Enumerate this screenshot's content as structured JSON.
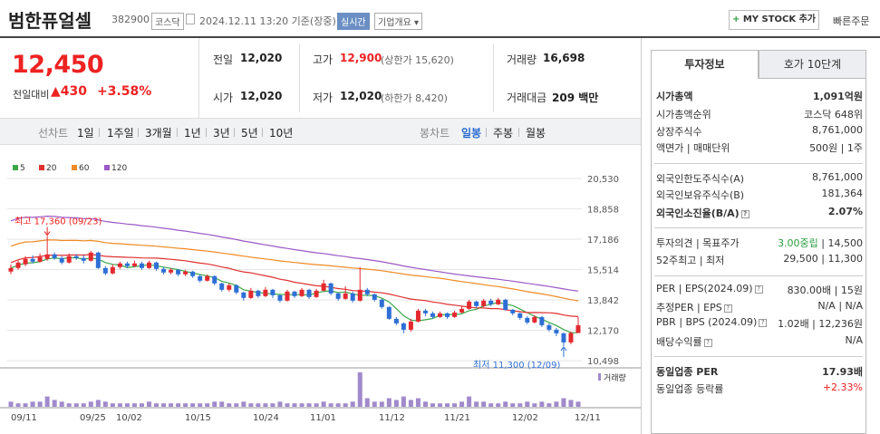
{
  "header": {
    "stock_name": "범한퓨얼셀",
    "stock_code": "382900",
    "market": "코스닥",
    "datetime": "2024.12.11 13:20 기준(장중)",
    "realtime": "실시간",
    "company_info": "기업개요",
    "mystock_label": "MY STOCK 추가",
    "mystock_plus": "+",
    "quick_order": "빠른주문"
  },
  "price": {
    "current": "12,450",
    "change_label": "전일대비",
    "change_value": "▲430",
    "change_pct": "+3.58%"
  },
  "quote": {
    "prev_close_label": "전일",
    "prev_close": "12,020",
    "high_label": "고가",
    "high": "12,900",
    "upper_limit": "(상한가 15,620)",
    "volume_label": "거래량",
    "volume": "16,698",
    "open_label": "시가",
    "open": "12,020",
    "low_label": "저가",
    "low": "12,020",
    "lower_limit": "(하한가 8,420)",
    "amount_label": "거래대금",
    "amount": "209 백만"
  },
  "period_bar": {
    "line_chart_label": "선차트",
    "line_periods": [
      "1일",
      "1주일",
      "3개월",
      "1년",
      "3년",
      "5년",
      "10년"
    ],
    "candle_chart_label": "봉차트",
    "candle_periods": [
      "일봉",
      "주봉",
      "월봉"
    ],
    "active": "일봉"
  },
  "chart_data": {
    "type": "candlestick",
    "legend": [
      {
        "name": "5",
        "color": "#3aa84a"
      },
      {
        "name": "20",
        "color": "#e03030"
      },
      {
        "name": "60",
        "color": "#f08a24"
      },
      {
        "name": "120",
        "color": "#9b59c6"
      }
    ],
    "y_ticks": [
      "20,530",
      "18,858",
      "17,186",
      "15,514",
      "13,842",
      "12,170",
      "10,498"
    ],
    "ylim": [
      10498,
      20530
    ],
    "x_ticks": [
      "09/11",
      "09/25",
      "10/02",
      "10/15",
      "10/24",
      "11/01",
      "11/12",
      "11/21",
      "12/02",
      "12/11"
    ],
    "high_annotation": "최고 17,360 (09/23)",
    "low_annotation": "최저 11,300 (12/09)",
    "volume_label": "거래량",
    "candles": [
      {
        "o": 15400,
        "c": 15600,
        "h": 15800,
        "l": 15250
      },
      {
        "o": 15600,
        "c": 15900,
        "h": 16000,
        "l": 15500
      },
      {
        "o": 15800,
        "c": 16100,
        "h": 16250,
        "l": 15700
      },
      {
        "o": 16100,
        "c": 15950,
        "h": 16300,
        "l": 15850
      },
      {
        "o": 15950,
        "c": 16200,
        "h": 16400,
        "l": 15900
      },
      {
        "o": 16100,
        "c": 16350,
        "h": 17360,
        "l": 16000
      },
      {
        "o": 16350,
        "c": 16150,
        "h": 16450,
        "l": 16050
      },
      {
        "o": 16150,
        "c": 15900,
        "h": 16250,
        "l": 15800
      },
      {
        "o": 15900,
        "c": 16250,
        "h": 16400,
        "l": 15850
      },
      {
        "o": 16250,
        "c": 16150,
        "h": 16350,
        "l": 16050
      },
      {
        "o": 16150,
        "c": 16000,
        "h": 16300,
        "l": 15850
      },
      {
        "o": 16000,
        "c": 16450,
        "h": 16550,
        "l": 15950
      },
      {
        "o": 16450,
        "c": 15600,
        "h": 16500,
        "l": 15550
      },
      {
        "o": 15600,
        "c": 15300,
        "h": 15700,
        "l": 15200
      },
      {
        "o": 15300,
        "c": 15650,
        "h": 15800,
        "l": 15250
      },
      {
        "o": 15650,
        "c": 15850,
        "h": 15950,
        "l": 15550
      },
      {
        "o": 15850,
        "c": 15700,
        "h": 15950,
        "l": 15600
      },
      {
        "o": 15700,
        "c": 15850,
        "h": 16000,
        "l": 15650
      },
      {
        "o": 15850,
        "c": 15600,
        "h": 15950,
        "l": 15500
      },
      {
        "o": 15600,
        "c": 15900,
        "h": 16000,
        "l": 15550
      },
      {
        "o": 15900,
        "c": 15550,
        "h": 15950,
        "l": 15450
      },
      {
        "o": 15550,
        "c": 15350,
        "h": 15650,
        "l": 15250
      },
      {
        "o": 15350,
        "c": 15500,
        "h": 15600,
        "l": 15250
      },
      {
        "o": 15500,
        "c": 15250,
        "h": 15550,
        "l": 15150
      },
      {
        "o": 15250,
        "c": 15400,
        "h": 15500,
        "l": 15150
      },
      {
        "o": 15400,
        "c": 15150,
        "h": 15450,
        "l": 15050
      },
      {
        "o": 15150,
        "c": 14900,
        "h": 15250,
        "l": 14800
      },
      {
        "o": 14900,
        "c": 15150,
        "h": 15250,
        "l": 14850
      },
      {
        "o": 15150,
        "c": 14750,
        "h": 15200,
        "l": 14650
      },
      {
        "o": 14750,
        "c": 14400,
        "h": 14800,
        "l": 14300
      },
      {
        "o": 14400,
        "c": 14650,
        "h": 14750,
        "l": 14300
      },
      {
        "o": 14650,
        "c": 14250,
        "h": 14700,
        "l": 14150
      },
      {
        "o": 14250,
        "c": 13950,
        "h": 14300,
        "l": 13800
      },
      {
        "o": 13950,
        "c": 14350,
        "h": 14500,
        "l": 13900
      },
      {
        "o": 14350,
        "c": 14050,
        "h": 14400,
        "l": 13950
      },
      {
        "o": 14050,
        "c": 14400,
        "h": 14550,
        "l": 14000
      },
      {
        "o": 14400,
        "c": 14100,
        "h": 14450,
        "l": 13950
      },
      {
        "o": 14100,
        "c": 13800,
        "h": 14150,
        "l": 13700
      },
      {
        "o": 13800,
        "c": 14300,
        "h": 14400,
        "l": 13750
      },
      {
        "o": 14300,
        "c": 14050,
        "h": 14350,
        "l": 13950
      },
      {
        "o": 14050,
        "c": 14400,
        "h": 14500,
        "l": 14000
      },
      {
        "o": 14400,
        "c": 14000,
        "h": 14450,
        "l": 13900
      },
      {
        "o": 14000,
        "c": 14350,
        "h": 14450,
        "l": 13950
      },
      {
        "o": 14350,
        "c": 14750,
        "h": 14950,
        "l": 14300
      },
      {
        "o": 14750,
        "c": 14200,
        "h": 14800,
        "l": 14100
      },
      {
        "o": 14200,
        "c": 13900,
        "h": 14250,
        "l": 13800
      },
      {
        "o": 13900,
        "c": 14200,
        "h": 14600,
        "l": 13850
      },
      {
        "o": 14200,
        "c": 13800,
        "h": 14300,
        "l": 13700
      },
      {
        "o": 13800,
        "c": 14400,
        "h": 15650,
        "l": 13750
      },
      {
        "o": 14400,
        "c": 14150,
        "h": 14500,
        "l": 14050
      },
      {
        "o": 14150,
        "c": 13850,
        "h": 14200,
        "l": 13750
      },
      {
        "o": 13850,
        "c": 13450,
        "h": 13900,
        "l": 13350
      },
      {
        "o": 13450,
        "c": 12800,
        "h": 13500,
        "l": 12750
      },
      {
        "o": 12800,
        "c": 12550,
        "h": 12900,
        "l": 12450
      },
      {
        "o": 12550,
        "c": 12200,
        "h": 12600,
        "l": 12000
      },
      {
        "o": 12200,
        "c": 12650,
        "h": 12800,
        "l": 12100
      },
      {
        "o": 12650,
        "c": 13250,
        "h": 13350,
        "l": 12600
      },
      {
        "o": 13250,
        "c": 13100,
        "h": 13350,
        "l": 12950
      },
      {
        "o": 13100,
        "c": 12900,
        "h": 13200,
        "l": 12800
      },
      {
        "o": 12900,
        "c": 13100,
        "h": 13200,
        "l": 12850
      },
      {
        "o": 13100,
        "c": 12900,
        "h": 13150,
        "l": 12800
      },
      {
        "o": 12900,
        "c": 13150,
        "h": 13250,
        "l": 12850
      },
      {
        "o": 13150,
        "c": 13350,
        "h": 13500,
        "l": 13100
      },
      {
        "o": 13350,
        "c": 13750,
        "h": 13850,
        "l": 13300
      },
      {
        "o": 13750,
        "c": 13500,
        "h": 13800,
        "l": 13400
      },
      {
        "o": 13500,
        "c": 13800,
        "h": 13900,
        "l": 13450
      },
      {
        "o": 13800,
        "c": 13600,
        "h": 13900,
        "l": 13500
      },
      {
        "o": 13600,
        "c": 13850,
        "h": 13950,
        "l": 13550
      },
      {
        "o": 13850,
        "c": 13300,
        "h": 13900,
        "l": 13250
      },
      {
        "o": 13300,
        "c": 13100,
        "h": 13350,
        "l": 13000
      },
      {
        "o": 13100,
        "c": 12850,
        "h": 13150,
        "l": 12750
      },
      {
        "o": 12850,
        "c": 12600,
        "h": 12950,
        "l": 12500
      },
      {
        "o": 12600,
        "c": 12900,
        "h": 13000,
        "l": 12550
      },
      {
        "o": 12900,
        "c": 12450,
        "h": 12950,
        "l": 12350
      },
      {
        "o": 12450,
        "c": 12200,
        "h": 12550,
        "l": 12100
      },
      {
        "o": 12200,
        "c": 12000,
        "h": 12300,
        "l": 11850
      },
      {
        "o": 12000,
        "c": 11500,
        "h": 12050,
        "l": 11300
      },
      {
        "o": 11500,
        "c": 12020,
        "h": 12100,
        "l": 11400
      },
      {
        "o": 12020,
        "c": 12450,
        "h": 12900,
        "l": 12020
      }
    ],
    "volumes": [
      3,
      2,
      2,
      3,
      3,
      6,
      4,
      3,
      2,
      2,
      2,
      3,
      4,
      3,
      2,
      2,
      2,
      2,
      2,
      3,
      2,
      2,
      2,
      2,
      2,
      2,
      2,
      2,
      3,
      3,
      2,
      2,
      3,
      2,
      2,
      2,
      2,
      3,
      2,
      2,
      2,
      2,
      2,
      3,
      2,
      2,
      2,
      3,
      20,
      5,
      3,
      3,
      5,
      4,
      6,
      4,
      5,
      3,
      2,
      2,
      2,
      2,
      3,
      6,
      3,
      3,
      2,
      2,
      3,
      2,
      2,
      3,
      2,
      3,
      2,
      3,
      5,
      4,
      3
    ]
  },
  "right_panel": {
    "tab_invest": "투자정보",
    "tab_order": "호가 10단계",
    "rows": [
      {
        "l": "시가총액",
        "r": "1,091억원",
        "lb": true,
        "rb": true
      },
      {
        "l": "시가총액순위",
        "r": "코스닥 648위"
      },
      {
        "l": "상장주식수",
        "r": "8,761,000"
      },
      {
        "l": "액면가 | 매매단위",
        "r": "500원 | 1주"
      },
      {
        "l": "외국인한도주식수(A)",
        "r": "8,761,000"
      },
      {
        "l": "외국인보유주식수(B)",
        "r": "181,364"
      },
      {
        "l": "외국인소진율(B/A)",
        "r": "2.07%",
        "lb": true,
        "rb": true,
        "icon": true
      },
      {
        "l": "투자의견 | 목표주가",
        "r": "3.00중립 | 14,500",
        "rgreen": "3.00중립"
      },
      {
        "l": "52주최고 | 최저",
        "r": "29,500 | 11,300"
      },
      {
        "l": "PER | EPS(2024.09)",
        "r": "830.00배 | 15원",
        "icon": true
      },
      {
        "l": "추정PER | EPS",
        "r": "N/A | N/A",
        "icon": true
      },
      {
        "l": "PBR | BPS (2024.09)",
        "r": "1.02배 | 12,236원",
        "icon": true
      },
      {
        "l": "배당수익률",
        "r": "N/A",
        "icon": true
      },
      {
        "l": "동일업종 PER",
        "r": "17.93배",
        "lb": true,
        "rb": true
      },
      {
        "l": "동일업종 등락률",
        "r": "+2.33%",
        "rred": true
      }
    ]
  }
}
